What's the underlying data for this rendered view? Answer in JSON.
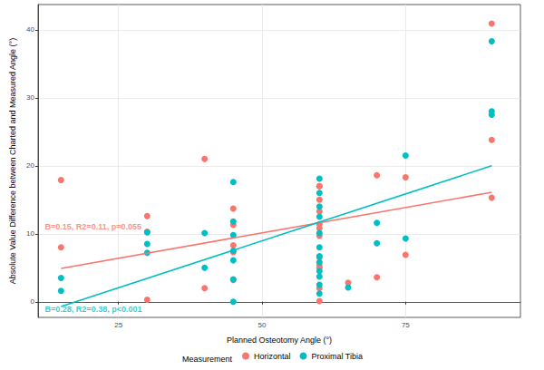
{
  "chart_data": {
    "type": "scatter",
    "x_label": "Planned Osteotomy Angle (°)",
    "y_label": "Absolute Value Difference between Charted and Measured Angle (°)",
    "legend_title": "Measurement",
    "legend": "bottom",
    "grid": true,
    "xlim": [
      11,
      95
    ],
    "xticks": [
      25,
      50,
      75
    ],
    "ylim": [
      -2.3,
      43.7
    ],
    "yticks": [
      0,
      10,
      20,
      30,
      40
    ],
    "series": [
      {
        "name": "Horizontal",
        "color": "#F8766D",
        "marker": "circle",
        "x": [
          15,
          15,
          30,
          30,
          30,
          40,
          40,
          45,
          45,
          45,
          45,
          45,
          60,
          60,
          60,
          60,
          60,
          60,
          60,
          60,
          60,
          60,
          60,
          60,
          65,
          70,
          70,
          75,
          75,
          90,
          90,
          90
        ],
        "values": [
          17.9,
          8.0,
          12.6,
          10.3,
          0.3,
          21.0,
          2.0,
          13.7,
          11.3,
          8.3,
          7.3,
          3.2,
          17.0,
          17.0,
          15.0,
          13.3,
          11.4,
          10.8,
          9.7,
          6.5,
          5.3,
          5.0,
          2.0,
          0.1,
          2.8,
          18.6,
          3.6,
          18.3,
          6.9,
          40.9,
          23.8,
          15.3
        ],
        "fit": {
          "x": [
            15,
            90
          ],
          "values": [
            4.9,
            16.1
          ]
        },
        "annotation": {
          "text": "B=0.15, R2=0.11, p=0.055",
          "x": 12.2,
          "y": 11
        }
      },
      {
        "name": "Proximal Tibia",
        "color": "#00BFC4",
        "marker": "circle",
        "x": [
          15,
          15,
          30,
          30,
          30,
          40,
          40,
          45,
          45,
          45,
          45,
          45,
          45,
          45,
          60,
          60,
          60,
          60,
          60,
          60,
          60,
          60,
          60,
          60,
          60,
          60,
          65,
          70,
          70,
          75,
          75,
          90,
          90,
          90
        ],
        "values": [
          3.5,
          1.6,
          10.2,
          8.5,
          7.2,
          10.1,
          5.0,
          17.6,
          11.8,
          9.8,
          7.5,
          6.1,
          3.3,
          0.0,
          18.1,
          16.0,
          14.0,
          12.5,
          10.1,
          8.0,
          6.7,
          5.8,
          4.5,
          3.7,
          2.5,
          1.2,
          2.1,
          11.6,
          8.6,
          21.5,
          9.3,
          38.3,
          28.0,
          27.5
        ],
        "fit": {
          "x": [
            15,
            90
          ],
          "values": [
            -0.7,
            20.0
          ]
        },
        "annotation": {
          "text": "B=0.28, R2=0.38, p<0.001",
          "x": 12.2,
          "y": -1.1
        }
      }
    ]
  }
}
